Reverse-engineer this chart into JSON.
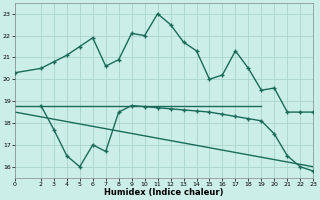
{
  "xlabel": "Humidex (Indice chaleur)",
  "background_color": "#cceee8",
  "grid_color": "#aad4cc",
  "line_color": "#1a6b5a",
  "xlim": [
    0,
    23
  ],
  "ylim": [
    15.5,
    23.5
  ],
  "yticks": [
    16,
    17,
    18,
    19,
    20,
    21,
    22,
    23
  ],
  "xticks": [
    0,
    2,
    3,
    4,
    5,
    6,
    7,
    8,
    9,
    10,
    11,
    12,
    13,
    14,
    15,
    16,
    17,
    18,
    19,
    20,
    21,
    22,
    23
  ],
  "line1_x": [
    0,
    2,
    3,
    4,
    5,
    6,
    7,
    8,
    9,
    10,
    11,
    12,
    13,
    14,
    15,
    16,
    17,
    18,
    19,
    20,
    21,
    22,
    23
  ],
  "line1_y": [
    20.3,
    20.5,
    20.8,
    21.1,
    21.5,
    21.9,
    20.6,
    20.9,
    22.1,
    22.0,
    23.0,
    22.5,
    21.7,
    21.3,
    20.0,
    20.2,
    21.3,
    20.5,
    19.5,
    19.6,
    18.5,
    18.5,
    18.5
  ],
  "line2_x": [
    2,
    3,
    4,
    5,
    6,
    7,
    8,
    9,
    10,
    11,
    12,
    13,
    14,
    15,
    16,
    17,
    18,
    19,
    20,
    21,
    22,
    23
  ],
  "line2_y": [
    18.8,
    17.7,
    16.5,
    16.0,
    17.0,
    16.7,
    18.5,
    18.8,
    18.75,
    18.7,
    18.65,
    18.6,
    18.55,
    18.5,
    18.4,
    18.3,
    18.2,
    18.1,
    17.5,
    16.5,
    16.0,
    15.8
  ],
  "line3_x": [
    0,
    19
  ],
  "line3_y": [
    18.8,
    18.8
  ],
  "line4_x": [
    0,
    23
  ],
  "line4_y": [
    18.5,
    16.0
  ],
  "marker_line1": true,
  "marker_line2": true,
  "marker_line3": false,
  "marker_line4": false
}
